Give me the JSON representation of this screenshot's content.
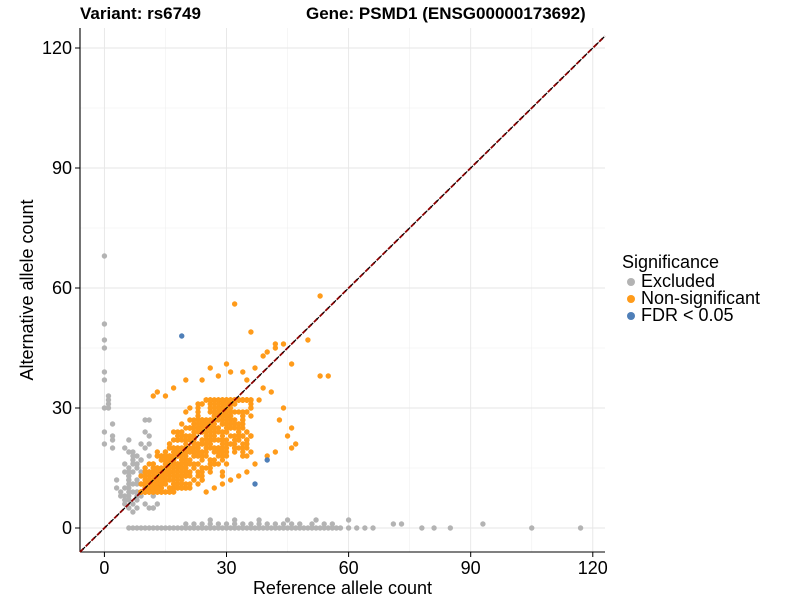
{
  "chart_data": {
    "type": "scatter",
    "title_left": "Variant: rs6749",
    "title_right": "Gene: PSMD1 (ENSG00000173692)",
    "xlabel": "Reference allele count",
    "ylabel": "Alternative allele count",
    "xlim": [
      -6,
      123
    ],
    "ylim": [
      -6,
      125
    ],
    "x_ticks": [
      0,
      30,
      60,
      90,
      120
    ],
    "y_ticks": [
      0,
      30,
      60,
      90,
      120
    ],
    "grid": true,
    "reference_line": {
      "slope": 1,
      "intercept": 0,
      "style": "dashed",
      "color": "#8b0000"
    },
    "legend": {
      "title": "Significance",
      "position": "right",
      "entries": [
        {
          "label": "Excluded",
          "color": "#b3b3b3"
        },
        {
          "label": "Non-significant",
          "color": "#ff9b1a"
        },
        {
          "label": "FDR < 0.05",
          "color": "#4f7fb8"
        }
      ]
    },
    "series": [
      {
        "name": "Excluded",
        "color": "#b3b3b3",
        "points": [
          [
            0,
            68
          ],
          [
            0,
            51
          ],
          [
            0,
            47
          ],
          [
            0,
            45
          ],
          [
            0,
            39
          ],
          [
            0,
            37
          ],
          [
            0,
            30
          ],
          [
            0,
            24
          ],
          [
            0,
            21
          ],
          [
            1,
            33
          ],
          [
            1,
            32
          ],
          [
            1,
            31
          ],
          [
            1,
            30
          ],
          [
            2,
            26
          ],
          [
            2,
            23
          ],
          [
            2,
            22
          ],
          [
            2,
            20
          ],
          [
            3,
            12
          ],
          [
            3,
            10
          ],
          [
            4,
            9
          ],
          [
            4,
            8
          ],
          [
            5,
            8
          ],
          [
            5,
            6
          ],
          [
            6,
            7
          ],
          [
            6,
            5
          ],
          [
            7,
            6
          ],
          [
            7,
            4
          ],
          [
            8,
            5
          ],
          [
            8,
            12
          ],
          [
            9,
            14
          ],
          [
            6,
            13
          ],
          [
            7,
            11
          ],
          [
            5,
            10
          ],
          [
            7,
            16
          ],
          [
            8,
            18
          ],
          [
            9,
            21
          ],
          [
            8,
            9
          ],
          [
            9,
            17
          ],
          [
            6,
            9
          ],
          [
            10,
            24
          ],
          [
            11,
            27
          ],
          [
            10,
            27
          ],
          [
            11,
            23
          ],
          [
            9,
            11
          ],
          [
            8,
            7
          ],
          [
            10,
            6
          ],
          [
            12,
            5
          ],
          [
            13,
            6
          ],
          [
            6,
            0
          ],
          [
            7,
            0
          ],
          [
            8,
            0
          ],
          [
            9,
            0
          ],
          [
            10,
            0
          ],
          [
            11,
            0
          ],
          [
            12,
            0
          ],
          [
            13,
            0
          ],
          [
            14,
            0
          ],
          [
            15,
            0
          ],
          [
            16,
            0
          ],
          [
            17,
            0
          ],
          [
            18,
            0
          ],
          [
            19,
            0
          ],
          [
            20,
            0
          ],
          [
            21,
            0
          ],
          [
            22,
            0
          ],
          [
            23,
            0
          ],
          [
            24,
            0
          ],
          [
            25,
            0
          ],
          [
            26,
            0
          ],
          [
            27,
            0
          ],
          [
            28,
            0
          ],
          [
            29,
            0
          ],
          [
            30,
            0
          ],
          [
            31,
            0
          ],
          [
            32,
            0
          ],
          [
            33,
            0
          ],
          [
            34,
            0
          ],
          [
            35,
            0
          ],
          [
            36,
            0
          ],
          [
            37,
            0
          ],
          [
            38,
            0
          ],
          [
            39,
            0
          ],
          [
            40,
            0
          ],
          [
            41,
            0
          ],
          [
            42,
            0
          ],
          [
            43,
            0
          ],
          [
            44,
            0
          ],
          [
            45,
            0
          ],
          [
            46,
            0
          ],
          [
            47,
            0
          ],
          [
            48,
            0
          ],
          [
            49,
            0
          ],
          [
            50,
            0
          ],
          [
            51,
            0
          ],
          [
            52,
            0
          ],
          [
            53,
            0
          ],
          [
            54,
            0
          ],
          [
            55,
            0
          ],
          [
            56,
            0
          ],
          [
            57,
            0
          ],
          [
            58,
            0
          ],
          [
            60,
            0
          ],
          [
            62,
            0
          ],
          [
            64,
            0
          ],
          [
            66,
            0
          ],
          [
            20,
            1
          ],
          [
            22,
            1
          ],
          [
            24,
            1
          ],
          [
            26,
            1
          ],
          [
            28,
            1
          ],
          [
            30,
            1
          ],
          [
            32,
            1
          ],
          [
            34,
            1
          ],
          [
            36,
            1
          ],
          [
            38,
            1
          ],
          [
            40,
            1
          ],
          [
            42,
            1
          ],
          [
            44,
            1
          ],
          [
            46,
            1
          ],
          [
            48,
            1
          ],
          [
            51,
            1
          ],
          [
            54,
            1
          ],
          [
            56,
            1
          ],
          [
            26,
            2
          ],
          [
            32,
            2
          ],
          [
            38,
            2
          ],
          [
            45,
            2
          ],
          [
            52,
            2
          ],
          [
            60,
            2
          ],
          [
            71,
            1
          ],
          [
            73,
            1
          ],
          [
            78,
            0
          ],
          [
            81,
            0
          ],
          [
            85,
            0
          ],
          [
            93,
            1
          ],
          [
            105,
            0
          ],
          [
            117,
            0
          ]
        ]
      },
      {
        "name": "Non-significant",
        "color": "#ff9b1a",
        "points": [
          [
            32,
            56
          ],
          [
            53,
            58
          ],
          [
            36,
            49
          ],
          [
            39,
            43
          ],
          [
            40,
            44
          ],
          [
            42,
            45
          ],
          [
            44,
            46
          ],
          [
            42,
            46
          ],
          [
            50,
            47
          ],
          [
            46,
            41
          ],
          [
            53,
            38
          ],
          [
            55,
            38
          ],
          [
            34,
            39
          ],
          [
            30,
            41
          ],
          [
            28,
            38
          ],
          [
            20,
            37
          ],
          [
            17,
            35
          ],
          [
            15,
            33
          ],
          [
            37,
            40
          ],
          [
            39,
            35
          ],
          [
            41,
            34
          ],
          [
            44,
            30
          ],
          [
            46,
            25
          ],
          [
            47,
            21
          ],
          [
            46,
            20
          ],
          [
            42,
            19
          ],
          [
            40,
            18
          ],
          [
            37,
            16
          ],
          [
            35,
            14
          ],
          [
            33,
            13
          ],
          [
            31,
            12
          ],
          [
            29,
            11
          ],
          [
            27,
            10
          ],
          [
            25,
            9
          ],
          [
            12,
            33
          ],
          [
            13,
            34
          ],
          [
            24,
            37
          ],
          [
            26,
            40
          ],
          [
            31,
            39
          ],
          [
            35,
            37
          ],
          [
            38,
            32
          ],
          [
            43,
            27
          ],
          [
            45,
            23
          ]
        ]
      },
      {
        "name": "FDR < 0.05",
        "color": "#4f7fb8",
        "points": [
          [
            19,
            48
          ],
          [
            37,
            11
          ],
          [
            40,
            17
          ]
        ]
      }
    ],
    "dense_clusters": [
      {
        "series": "Non-significant",
        "x_range": [
          9,
          36
        ],
        "y_range": [
          9,
          32
        ],
        "count": 700,
        "seed": 17
      },
      {
        "series": "Excluded",
        "x_range": [
          5,
          12
        ],
        "y_range": [
          4,
          22
        ],
        "count": 45,
        "seed": 5
      }
    ]
  }
}
